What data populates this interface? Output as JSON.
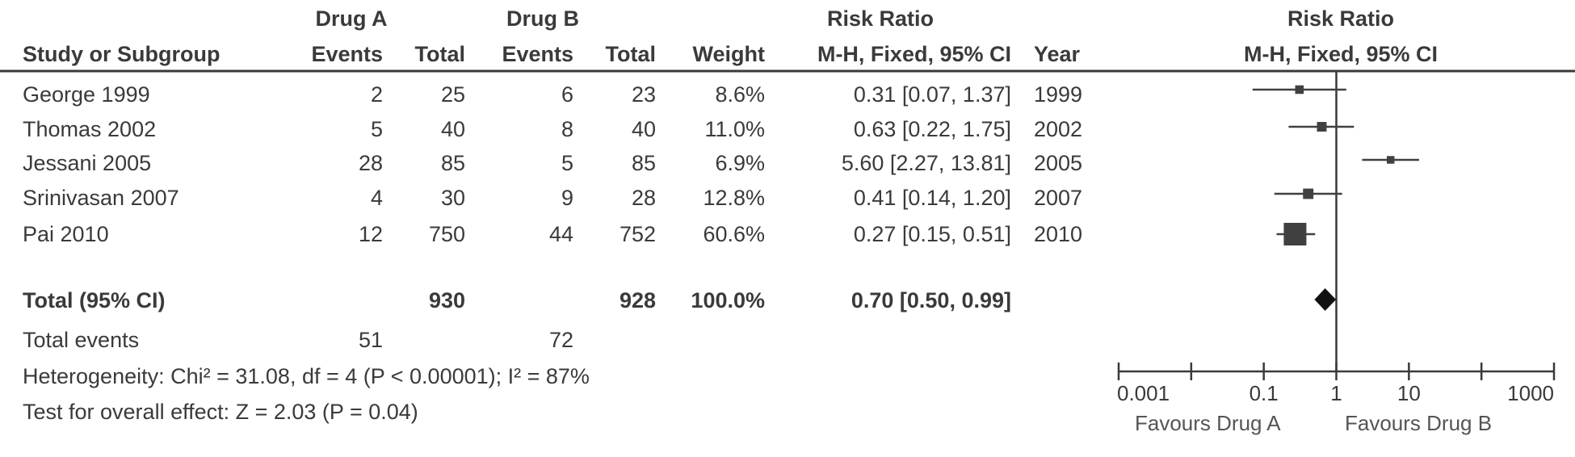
{
  "header": {
    "group_a": "Drug A",
    "group_b": "Drug B",
    "rr_header": "Risk Ratio",
    "col_study": "Study or Subgroup",
    "col_events_a": "Events",
    "col_total_a": "Total",
    "col_events_b": "Events",
    "col_total_b": "Total",
    "col_weight": "Weight",
    "col_method": "M-H, Fixed, 95% CI",
    "col_year": "Year",
    "plot_title": "Risk Ratio",
    "plot_method": "M-H, Fixed, 95% CI"
  },
  "studies": [
    {
      "name": "George 1999",
      "events_a": "2",
      "total_a": "25",
      "events_b": "6",
      "total_b": "23",
      "weight": "8.6%",
      "ci_text": "0.31 [0.07, 1.37]",
      "year": "1999"
    },
    {
      "name": "Thomas 2002",
      "events_a": "5",
      "total_a": "40",
      "events_b": "8",
      "total_b": "40",
      "weight": "11.0%",
      "ci_text": "0.63 [0.22, 1.75]",
      "year": "2002"
    },
    {
      "name": "Jessani 2005",
      "events_a": "28",
      "total_a": "85",
      "events_b": "5",
      "total_b": "85",
      "weight": "6.9%",
      "ci_text": "5.60 [2.27, 13.81]",
      "year": "2005"
    },
    {
      "name": "Srinivasan 2007",
      "events_a": "4",
      "total_a": "30",
      "events_b": "9",
      "total_b": "28",
      "weight": "12.8%",
      "ci_text": "0.41 [0.14, 1.20]",
      "year": "2007"
    },
    {
      "name": "Pai 2010",
      "events_a": "12",
      "total_a": "750",
      "events_b": "44",
      "total_b": "752",
      "weight": "60.6%",
      "ci_text": "0.27 [0.15, 0.51]",
      "year": "2010"
    }
  ],
  "total": {
    "label": "Total (95% CI)",
    "total_a": "930",
    "total_b": "928",
    "weight": "100.0%",
    "ci_text": "0.70 [0.50, 0.99]"
  },
  "total_events": {
    "label": "Total events",
    "events_a": "51",
    "events_b": "72"
  },
  "heterogeneity": "Heterogeneity: Chi² = 31.08, df = 4 (P < 0.00001); I² = 87%",
  "overall_effect": "Test for overall effect: Z = 2.03 (P = 0.04)",
  "axis": {
    "favours_left": "Favours Drug A",
    "favours_right": "Favours Drug B"
  },
  "chart_data": {
    "type": "scatter",
    "scale": "log",
    "xlim": [
      0.001,
      1000
    ],
    "ticks": [
      0.001,
      0.1,
      1,
      10,
      1000
    ],
    "tick_labels": [
      "0.001",
      "0.1",
      "1",
      "10",
      "1000"
    ],
    "reference_line": 1,
    "marker_color": "#404040",
    "studies": [
      {
        "name": "George 1999",
        "rr": 0.31,
        "lo": 0.07,
        "hi": 1.37,
        "weight": 8.6
      },
      {
        "name": "Thomas 2002",
        "rr": 0.63,
        "lo": 0.22,
        "hi": 1.75,
        "weight": 11.0
      },
      {
        "name": "Jessani 2005",
        "rr": 5.6,
        "lo": 2.27,
        "hi": 13.81,
        "weight": 6.9
      },
      {
        "name": "Srinivasan 2007",
        "rr": 0.41,
        "lo": 0.14,
        "hi": 1.2,
        "weight": 12.8
      },
      {
        "name": "Pai 2010",
        "rr": 0.27,
        "lo": 0.15,
        "hi": 0.51,
        "weight": 60.6
      }
    ],
    "pooled": {
      "rr": 0.7,
      "lo": 0.5,
      "hi": 0.99
    }
  }
}
